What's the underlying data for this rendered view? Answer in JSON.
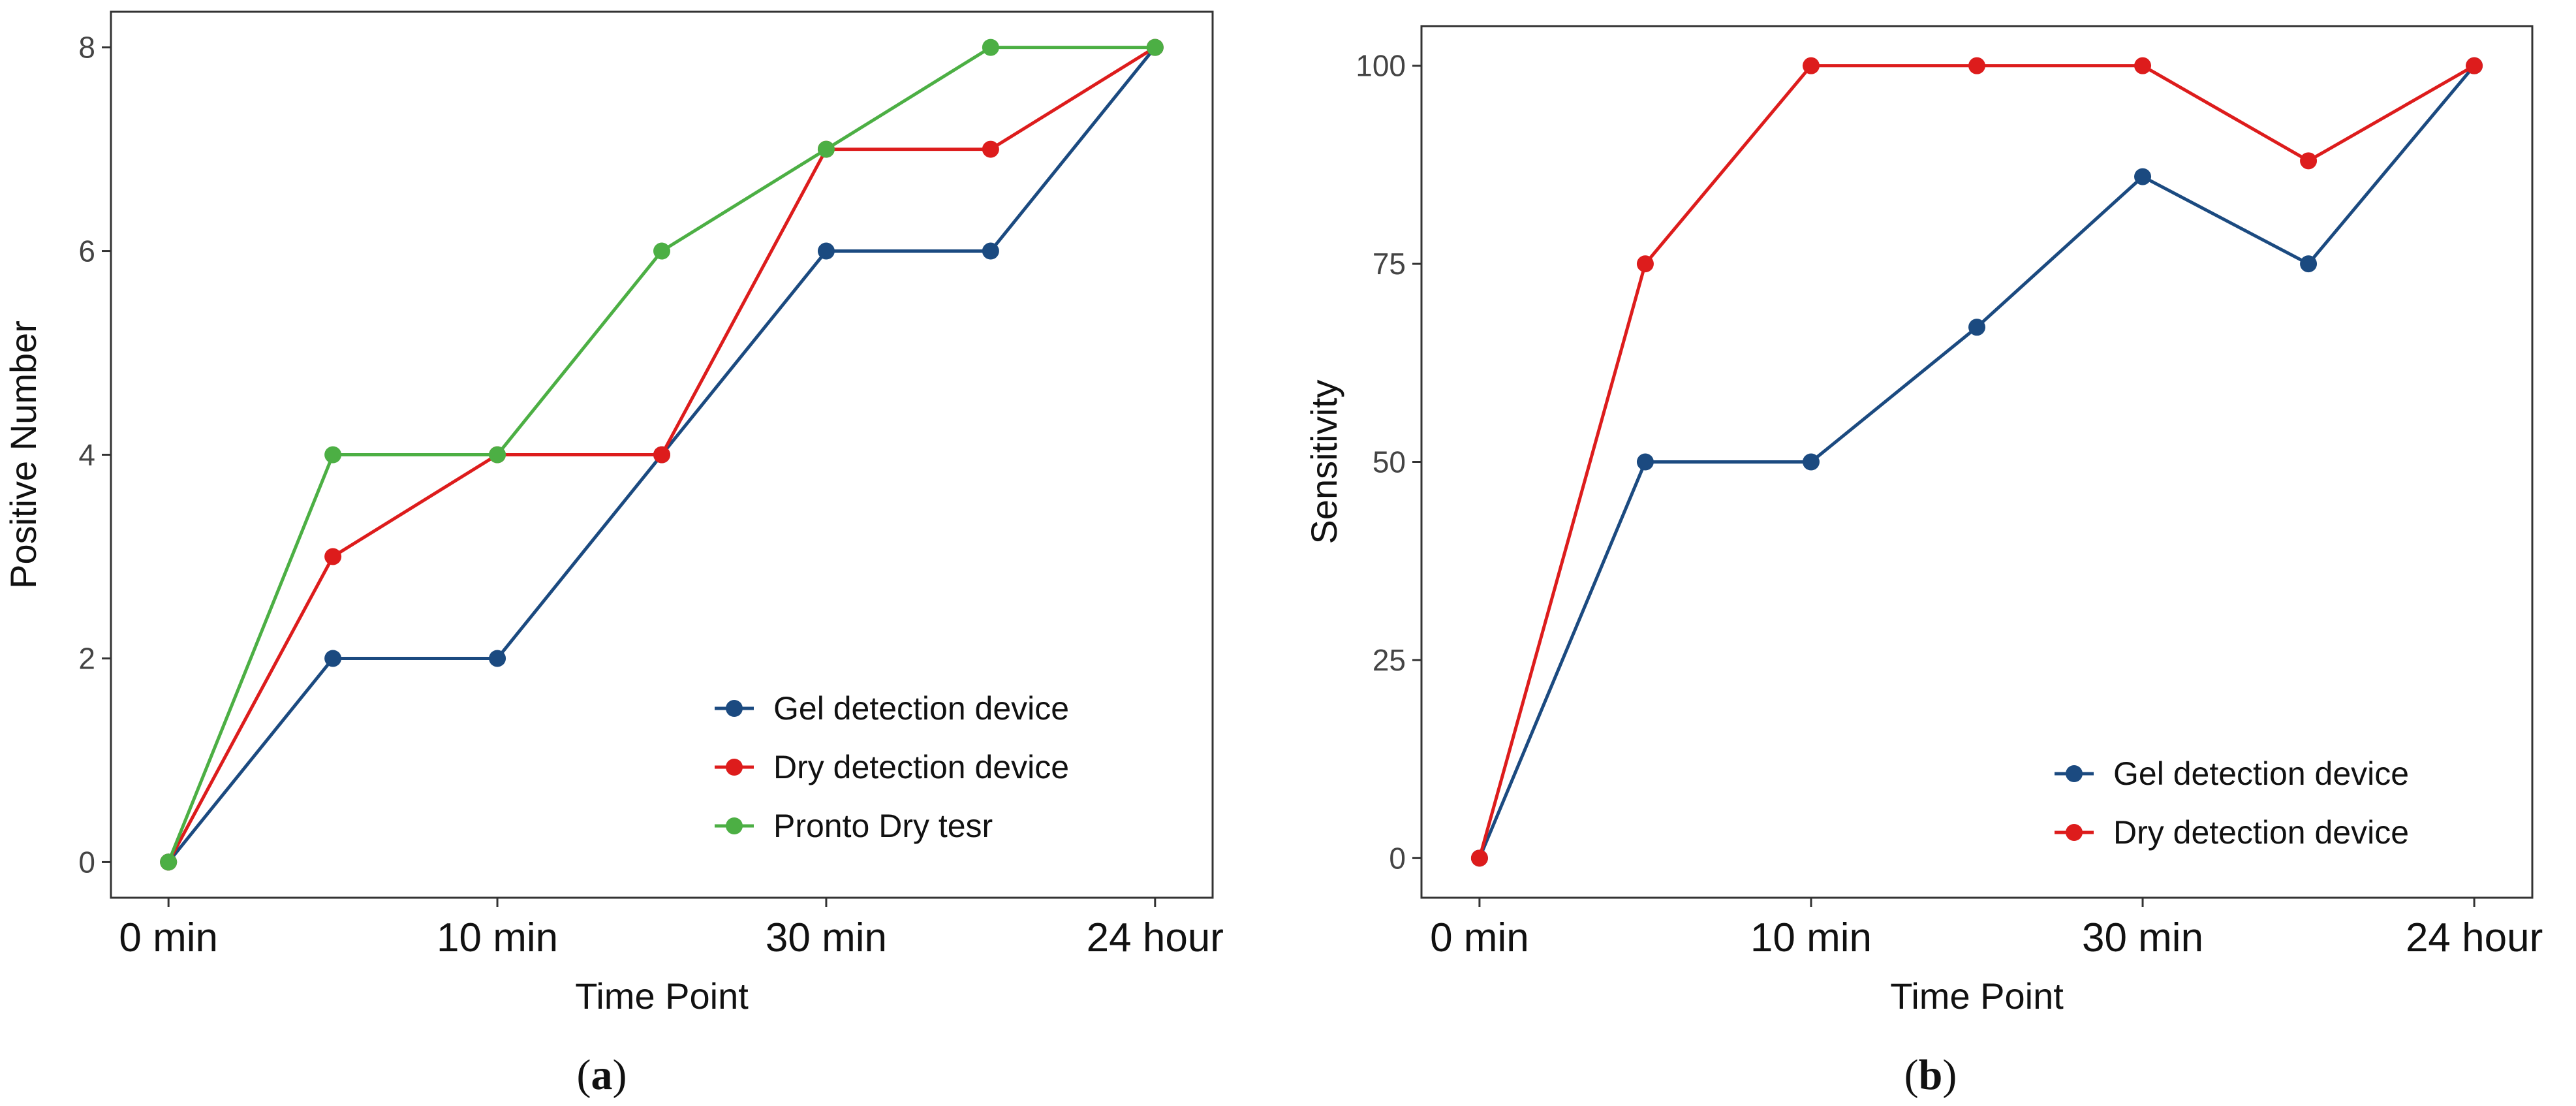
{
  "chart_data": [
    {
      "type": "line",
      "panel_label": "a",
      "title": "",
      "xlabel": "Time Point",
      "ylabel": "Positive Number",
      "x_positions": [
        0,
        1,
        2,
        3,
        4,
        5,
        6
      ],
      "x_tick_positions": [
        0,
        2,
        4,
        6
      ],
      "x_tick_labels": [
        "0 min",
        "10 min",
        "30 min",
        "24 hour"
      ],
      "y_ticks": [
        0,
        2,
        4,
        6,
        8
      ],
      "ylim": [
        -0.35,
        8.35
      ],
      "xlim": [
        -0.35,
        6.35
      ],
      "grid": false,
      "legend_position": "bottom-right",
      "series": [
        {
          "name": "Gel detection device",
          "color": "#1b4a80",
          "values": [
            0,
            2,
            2,
            4,
            6,
            6,
            8
          ]
        },
        {
          "name": "Dry detection device",
          "color": "#dd1c1c",
          "values": [
            0,
            3,
            4,
            4,
            7,
            7,
            8
          ]
        },
        {
          "name": "Pronto Dry tesr",
          "color": "#4caf44",
          "values": [
            0,
            4,
            4,
            6,
            7,
            8,
            8
          ]
        }
      ]
    },
    {
      "type": "line",
      "panel_label": "b",
      "title": "",
      "xlabel": "Time Point",
      "ylabel": "Sensitivity",
      "x_positions": [
        0,
        1,
        2,
        3,
        4,
        5,
        6
      ],
      "x_tick_positions": [
        0,
        2,
        4,
        6
      ],
      "x_tick_labels": [
        "0 min",
        "10 min",
        "30 min",
        "24 hour"
      ],
      "y_ticks": [
        0,
        25,
        50,
        75,
        100
      ],
      "ylim": [
        -5,
        105
      ],
      "xlim": [
        -0.35,
        6.35
      ],
      "grid": false,
      "legend_position": "bottom-right",
      "series": [
        {
          "name": "Gel detection device",
          "color": "#1b4a80",
          "values": [
            0,
            50,
            50,
            67,
            86,
            75,
            100
          ]
        },
        {
          "name": "Dry detection device",
          "color": "#dd1c1c",
          "values": [
            0,
            75,
            100,
            100,
            100,
            88,
            100
          ]
        }
      ]
    }
  ]
}
